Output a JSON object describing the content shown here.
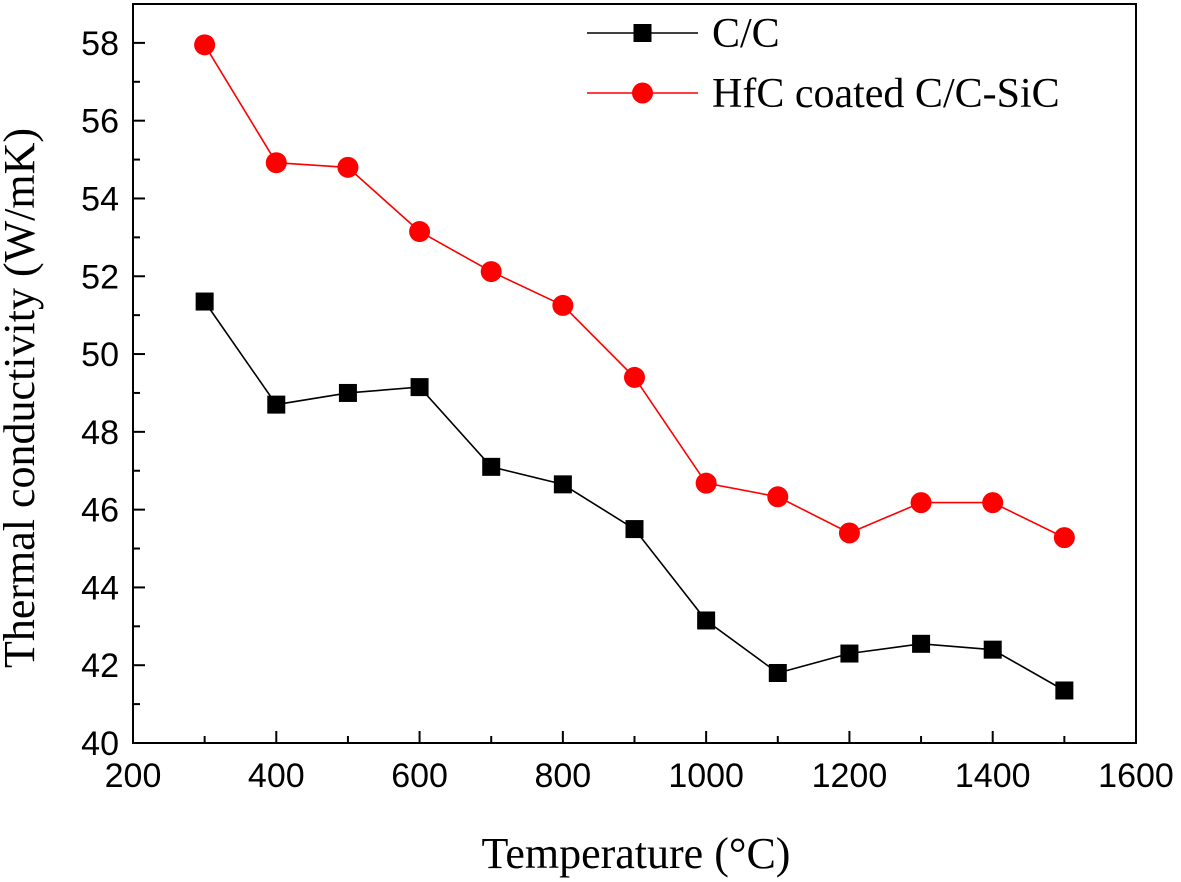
{
  "chart_data": {
    "type": "line",
    "title": "",
    "xlabel": "Temperature (°C)",
    "ylabel": "Thermal conductivity (W/mK)",
    "xlim": [
      200,
      1600
    ],
    "ylim": [
      40,
      59
    ],
    "xticks": [
      200,
      400,
      600,
      800,
      1000,
      1200,
      1400,
      1600
    ],
    "yticks": [
      40,
      42,
      44,
      46,
      48,
      50,
      52,
      54,
      56,
      58
    ],
    "x": [
      300,
      400,
      500,
      600,
      700,
      800,
      900,
      1000,
      1100,
      1200,
      1300,
      1400,
      1500
    ],
    "legend_position": "top-right",
    "grid": false,
    "series": [
      {
        "name": "C/C",
        "color": "#000000",
        "marker": "square",
        "values": [
          51.35,
          48.7,
          49.0,
          49.15,
          47.1,
          46.65,
          45.5,
          43.15,
          41.8,
          42.3,
          42.55,
          42.4,
          41.35
        ]
      },
      {
        "name": "HfC coated C/C-SiC",
        "color": "#ff0000",
        "marker": "circle",
        "values": [
          57.95,
          54.92,
          54.8,
          53.15,
          52.12,
          51.25,
          49.4,
          46.68,
          46.33,
          45.4,
          46.18,
          46.18,
          45.28
        ]
      }
    ]
  }
}
